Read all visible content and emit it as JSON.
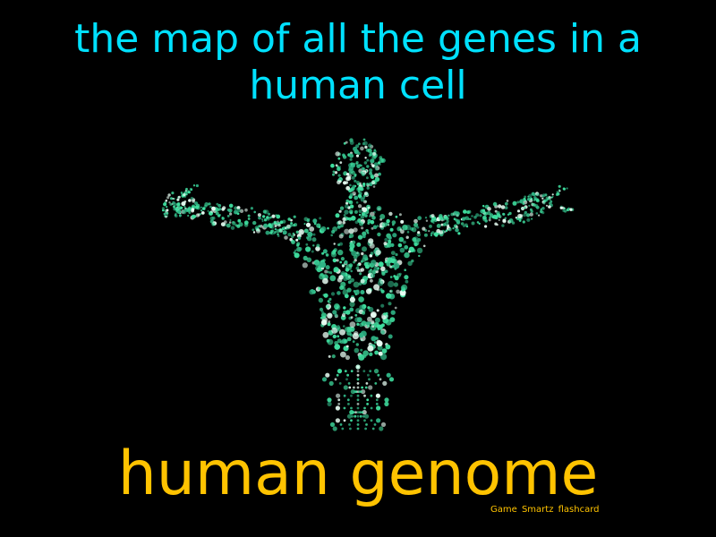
{
  "flashcard": {
    "definition": "the map of all the genes in a human cell",
    "term": "human genome",
    "credit": "Game Smartz flashcard"
  },
  "illustration": {
    "icon": "dna-human-figure-icon",
    "colors": {
      "dots_primary": "#3fe0a0",
      "dots_light": "#e8fff4",
      "dots_mid": "#2fb586"
    }
  },
  "colors": {
    "background": "#000000",
    "definition_text": "#00e1ff",
    "term_text": "#ffc300"
  }
}
